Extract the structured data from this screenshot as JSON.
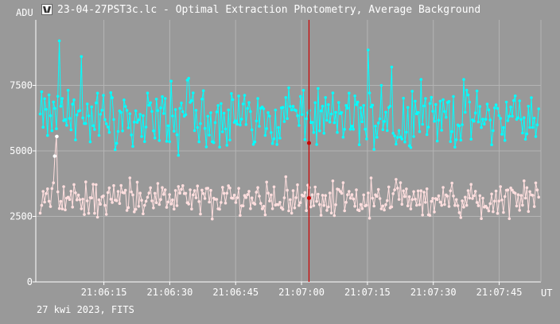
{
  "window": {
    "title": "23-04-27PST3c.lc - Optimal Extraction Photometry, Average Background",
    "footer": "27 kwi 2023, FITS",
    "icon": "photometry-app-icon"
  },
  "chart_data": {
    "type": "line",
    "title": "23-04-27PST3c.lc - Optimal Extraction Photometry, Average Background",
    "ylabel": "ADU",
    "xlabel": "UT",
    "ylim": [
      0,
      10000
    ],
    "xlim_seconds": [
      59.5,
      174.5
    ],
    "yticks": [
      0,
      2500,
      5000,
      7500
    ],
    "ytick_labels": [
      "0",
      "2500",
      "5000",
      "7500"
    ],
    "xticks_seconds": [
      75,
      90,
      105,
      120,
      135,
      150,
      165
    ],
    "xtick_labels": [
      "21:06:15",
      "21:06:30",
      "21:06:45",
      "21:07:00",
      "21:07:15",
      "21:07:30",
      "21:07:45"
    ],
    "grid": true,
    "cursor": {
      "x_seconds": 121.7,
      "color": "#cc0000",
      "points": [
        5300,
        3200
      ]
    },
    "series": [
      {
        "name": "",
        "color": "#00ffff",
        "n_points": 340,
        "mean": 6250,
        "spread": 1800,
        "min": 4400,
        "max": 9200,
        "highlights": [
          {
            "x": 65.0,
            "y": 9200
          },
          {
            "x": 69.8,
            "y": 8600
          },
          {
            "x": 135.2,
            "y": 8850
          },
          {
            "x": 140.5,
            "y": 8200
          }
        ]
      },
      {
        "name": "",
        "color": "#ffdede",
        "n_points": 340,
        "mean": 3200,
        "spread": 1000,
        "min": 2000,
        "max": 5600,
        "highlights": [
          {
            "x": 64.3,
            "y": 5550
          },
          {
            "x": 63.8,
            "y": 4800
          }
        ]
      }
    ]
  }
}
